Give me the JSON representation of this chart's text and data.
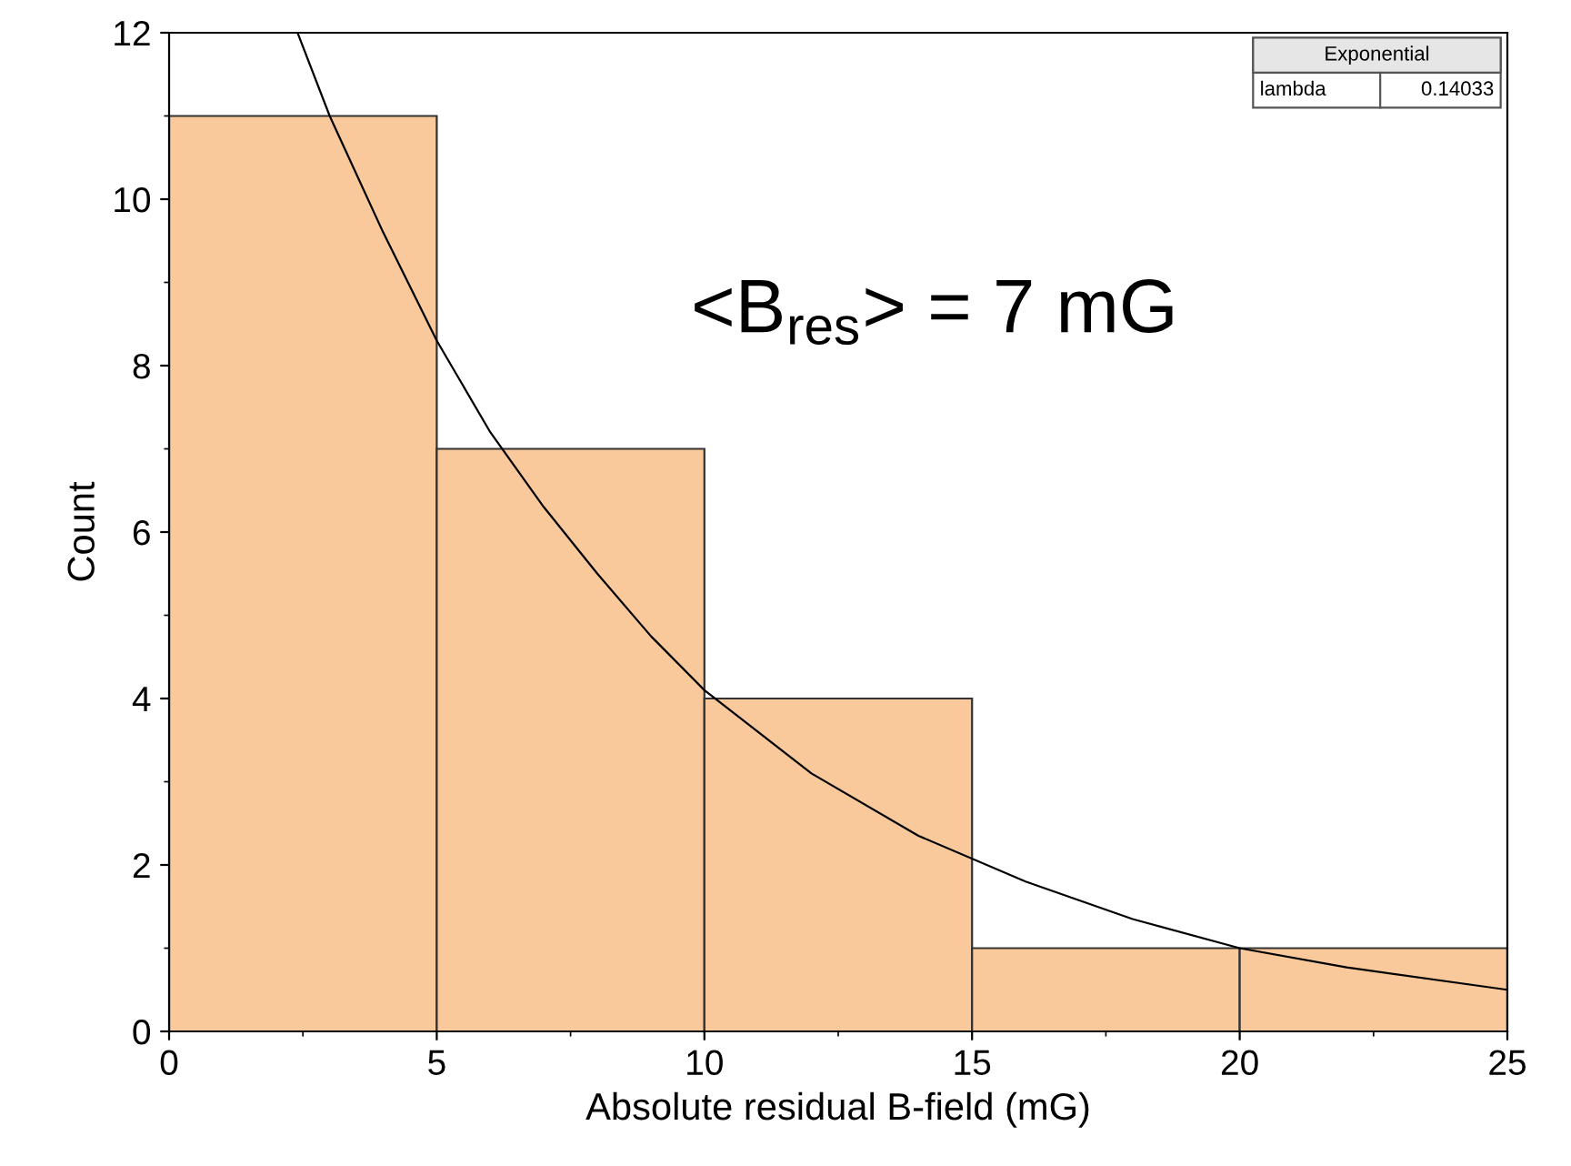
{
  "chart_data": {
    "type": "histogram",
    "xlabel": "Absolute residual B-field (mG)",
    "ylabel": "Count",
    "bins": [
      0,
      5,
      10,
      15,
      20,
      25
    ],
    "values": [
      11,
      7,
      4,
      1,
      1
    ],
    "color": "#f9c89b",
    "series": [
      {
        "type": "line",
        "color": "#000000",
        "x": [
          2.4,
          3,
          4,
          5,
          6,
          7,
          8,
          9,
          10,
          12,
          14,
          16,
          18,
          20,
          22,
          25
        ],
        "values": [
          12.0,
          11.0,
          9.6,
          8.3,
          7.2,
          6.3,
          5.5,
          4.75,
          4.1,
          3.1,
          2.35,
          1.8,
          1.35,
          1.0,
          0.77,
          0.5
        ]
      }
    ],
    "xlim": [
      0,
      25
    ],
    "ylim": [
      0,
      12
    ],
    "xticks": [
      0,
      5,
      10,
      15,
      20,
      25
    ],
    "yticks": [
      0,
      2,
      4,
      6,
      8,
      10,
      12
    ],
    "grid": false,
    "annotations": [
      "<B$_{res}$> = 7 mG",
      "Exponential",
      "lambda",
      "0.14033"
    ]
  }
}
